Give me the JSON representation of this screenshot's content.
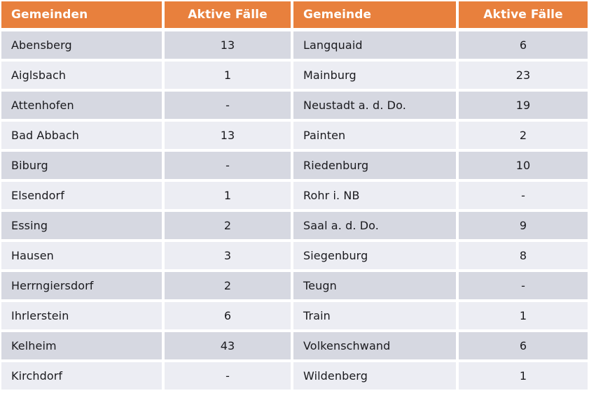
{
  "table": {
    "headers": [
      "Gemeinden",
      "Aktive Fälle",
      "Gemeinde",
      "Aktive Fälle"
    ],
    "left_rows": [
      {
        "name": "Abensberg",
        "value": "13"
      },
      {
        "name": "Aiglsbach",
        "value": "1"
      },
      {
        "name": "Attenhofen",
        "value": "-"
      },
      {
        "name": "Bad Abbach",
        "value": "13"
      },
      {
        "name": "Biburg",
        "value": "-"
      },
      {
        "name": "Elsendorf",
        "value": "1"
      },
      {
        "name": "Essing",
        "value": "2"
      },
      {
        "name": "Hausen",
        "value": "3"
      },
      {
        "name": "Herrngiersdorf",
        "value": "2"
      },
      {
        "name": "Ihrlerstein",
        "value": "6"
      },
      {
        "name": "Kelheim",
        "value": "43"
      },
      {
        "name": "Kirchdorf",
        "value": "-"
      }
    ],
    "right_rows": [
      {
        "name": "Langquaid",
        "value": "6"
      },
      {
        "name": "Mainburg",
        "value": "23"
      },
      {
        "name": "Neustadt a. d. Do.",
        "value": "19"
      },
      {
        "name": "Painten",
        "value": "2"
      },
      {
        "name": "Riedenburg",
        "value": "10"
      },
      {
        "name": "Rohr i. NB",
        "value": "-"
      },
      {
        "name": "Saal a. d. Do.",
        "value": "9"
      },
      {
        "name": "Siegenburg",
        "value": "8"
      },
      {
        "name": "Teugn",
        "value": "-"
      },
      {
        "name": "Train",
        "value": "1"
      },
      {
        "name": "Volkenschwand",
        "value": "6"
      },
      {
        "name": "Wildenberg",
        "value": "1"
      }
    ]
  },
  "colors": {
    "header_bg": "#e8803d",
    "header_text": "#ffffff",
    "row_dark": "#d6d8e1",
    "row_light": "#ecedf3",
    "cell_text": "#1a1a1e"
  }
}
